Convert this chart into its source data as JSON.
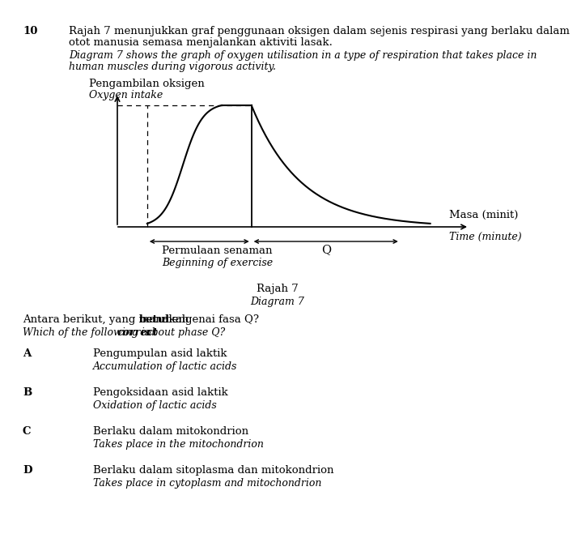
{
  "question_number": "10",
  "title_malay_line1": "Rajah 7 menunjukkan graf penggunaan oksigen dalam sejenis respirasi yang berlaku dalam",
  "title_malay_line2": "otot manusia semasa menjalankan aktiviti lasak.",
  "title_english_line1": "Diagram 7 shows the graph of oxygen utilisation in a type of respiration that takes place in",
  "title_english_line2": "human muscles during vigorous activity.",
  "ylabel_malay": "Pengambilan oksigen",
  "ylabel_english": "Oxygen intake",
  "xlabel_malay": "Masa (minit)",
  "xlabel_english": "Time (minute)",
  "phase_label": "Q",
  "exercise_label_malay": "Permulaan senaman",
  "exercise_label_english": "Beginning of exercise",
  "diagram_label_malay": "Rajah 7",
  "diagram_label_english": "Diagram 7",
  "question_malay_pre": "Antara berikut, yang manakah ",
  "question_malay_bold": "betul",
  "question_malay_post": " mengenai fasa Q?",
  "question_english_pre": "Which of the following is ",
  "question_english_bold": "correct",
  "question_english_post": " about phase Q?",
  "options": [
    {
      "letter": "A",
      "malay": "Pengumpulan asid laktik",
      "english": "Accumulation of lactic acids"
    },
    {
      "letter": "B",
      "malay": "Pengoksidaan asid laktik",
      "english": "Oxidation of lactic acids"
    },
    {
      "letter": "C",
      "malay": "Berlaku dalam mitokondrion",
      "english": "Takes place in the mitochondrion"
    },
    {
      "letter": "D",
      "malay": "Berlaku dalam sitoplasma dan mitokondrion",
      "english": "Takes place in cytoplasm and mitochondrion"
    }
  ],
  "bg_color": "#ffffff",
  "text_color": "#000000",
  "fs": 9.5,
  "fs_small": 9.0
}
